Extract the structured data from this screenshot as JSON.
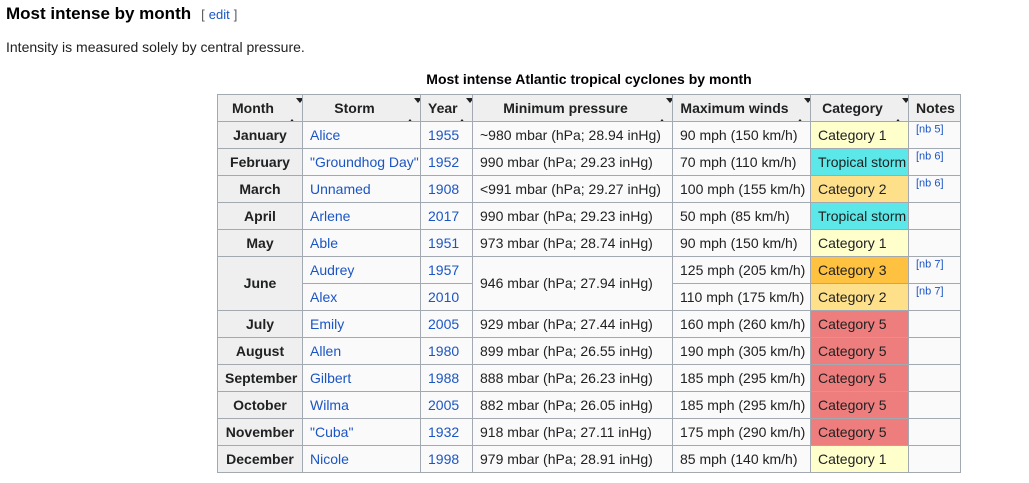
{
  "page": {
    "heading": "Most intense by month",
    "edit": {
      "open": "[",
      "label": "edit",
      "close": "]"
    },
    "intro": "Intensity is measured solely by central pressure."
  },
  "colors": {
    "link": "#1B55C4",
    "header_bg": "#EFEFEF",
    "cell_bg": "#FAFAFA",
    "border": "#A2A9B1",
    "bracket": "#54595D"
  },
  "table": {
    "caption": "Most intense Atlantic tropical cyclones by month",
    "columns": [
      {
        "label": "Month",
        "sortable": true
      },
      {
        "label": "Storm",
        "sortable": true
      },
      {
        "label": "Year",
        "sortable": true
      },
      {
        "label": "Minimum pressure",
        "sortable": true
      },
      {
        "label": "Maximum winds",
        "sortable": true
      },
      {
        "label": "Category",
        "sortable": true
      },
      {
        "label": "Notes",
        "sortable": false
      }
    ],
    "category_colors": {
      "Tropical storm": "#5CE8E8",
      "Category 1": "#FFFFCC",
      "Category 2": "#FFE08A",
      "Category 3": "#FFC140",
      "Category 5": "#EE7E7E"
    },
    "rows": [
      {
        "month": "January",
        "month_rowspan": 1,
        "storm": "Alice",
        "year": "1955",
        "pressure": "~980 mbar (hPa; 28.94 inHg)",
        "pressure_rowspan": 1,
        "winds": "90 mph (150 km/h)",
        "category": "Category 1",
        "note": "[nb 5]"
      },
      {
        "month": "February",
        "month_rowspan": 1,
        "storm": "\"Groundhog Day\"",
        "year": "1952",
        "pressure": "990 mbar (hPa; 29.23 inHg)",
        "pressure_rowspan": 1,
        "winds": "70 mph (110 km/h)",
        "category": "Tropical storm",
        "note": "[nb 6]"
      },
      {
        "month": "March",
        "month_rowspan": 1,
        "storm": "Unnamed",
        "year": "1908",
        "pressure": "<991 mbar (hPa; 29.27 inHg)",
        "pressure_rowspan": 1,
        "winds": "100 mph (155 km/h)",
        "category": "Category 2",
        "note": "[nb 6]"
      },
      {
        "month": "April",
        "month_rowspan": 1,
        "storm": "Arlene",
        "year": "2017",
        "pressure": "990 mbar (hPa; 29.23 inHg)",
        "pressure_rowspan": 1,
        "winds": "50 mph (85 km/h)",
        "category": "Tropical storm",
        "note": ""
      },
      {
        "month": "May",
        "month_rowspan": 1,
        "storm": "Able",
        "year": "1951",
        "pressure": "973 mbar (hPa; 28.74 inHg)",
        "pressure_rowspan": 1,
        "winds": "90 mph (150 km/h)",
        "category": "Category 1",
        "note": ""
      },
      {
        "month": "June",
        "month_rowspan": 2,
        "storm": "Audrey",
        "year": "1957",
        "pressure": "946 mbar (hPa; 27.94 inHg)",
        "pressure_rowspan": 2,
        "winds": "125 mph (205 km/h)",
        "category": "Category 3",
        "note": "[nb 7]"
      },
      {
        "month": null,
        "storm": "Alex",
        "year": "2010",
        "pressure": null,
        "winds": "110 mph (175 km/h)",
        "category": "Category 2",
        "note": "[nb 7]"
      },
      {
        "month": "July",
        "month_rowspan": 1,
        "storm": "Emily",
        "year": "2005",
        "pressure": "929 mbar (hPa; 27.44 inHg)",
        "pressure_rowspan": 1,
        "winds": "160 mph (260 km/h)",
        "category": "Category 5",
        "note": ""
      },
      {
        "month": "August",
        "month_rowspan": 1,
        "storm": "Allen",
        "year": "1980",
        "pressure": "899 mbar (hPa; 26.55 inHg)",
        "pressure_rowspan": 1,
        "winds": "190 mph (305 km/h)",
        "category": "Category 5",
        "note": ""
      },
      {
        "month": "September",
        "month_rowspan": 1,
        "storm": "Gilbert",
        "year": "1988",
        "pressure": "888 mbar (hPa; 26.23 inHg)",
        "pressure_rowspan": 1,
        "winds": "185 mph (295 km/h)",
        "category": "Category 5",
        "note": ""
      },
      {
        "month": "October",
        "month_rowspan": 1,
        "storm": "Wilma",
        "year": "2005",
        "pressure": "882 mbar (hPa; 26.05 inHg)",
        "pressure_rowspan": 1,
        "winds": "185 mph (295 km/h)",
        "category": "Category 5",
        "note": ""
      },
      {
        "month": "November",
        "month_rowspan": 1,
        "storm": "\"Cuba\"",
        "year": "1932",
        "pressure": "918 mbar (hPa; 27.11 inHg)",
        "pressure_rowspan": 1,
        "winds": "175 mph (290 km/h)",
        "category": "Category 5",
        "note": ""
      },
      {
        "month": "December",
        "month_rowspan": 1,
        "storm": "Nicole",
        "year": "1998",
        "pressure": "979 mbar (hPa; 28.91 inHg)",
        "pressure_rowspan": 1,
        "winds": "85 mph (140 km/h)",
        "category": "Category 1",
        "note": ""
      }
    ]
  }
}
